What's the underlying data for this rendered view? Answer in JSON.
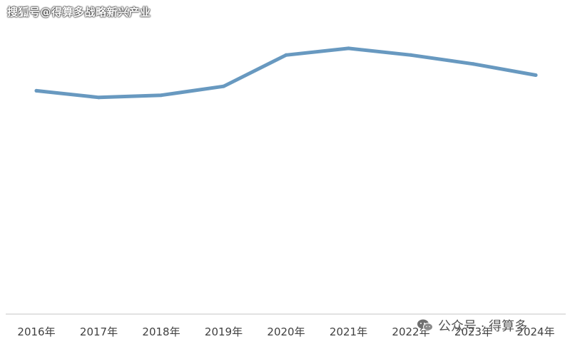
{
  "watermark_top": "搜狐号@得算多战略新兴产业",
  "watermark_bottom": {
    "icon": "wechat-icon",
    "text": "公众号 · 得算多"
  },
  "colors": {
    "line": "#6899c0",
    "axis": "#d9d9d9",
    "tick_text": "#404040"
  },
  "chart_data": {
    "type": "line",
    "title": "",
    "xlabel": "",
    "ylabel": "",
    "categories": [
      "2016年",
      "2017年",
      "2018年",
      "2019年",
      "2020年",
      "2021年",
      "2022年",
      "2023年",
      "2024年"
    ],
    "series": [
      {
        "values": [
          100,
          97,
          98,
          102,
          116,
          119,
          116,
          112,
          107
        ]
      }
    ],
    "ylim": [
      0,
      140
    ],
    "y_axis_visible": false,
    "grid": false,
    "legend": "none"
  }
}
